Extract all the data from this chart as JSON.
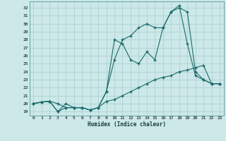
{
  "title": "",
  "xlabel": "Humidex (Indice chaleur)",
  "bg_color": "#cce8e8",
  "grid_color": "#aacccc",
  "line_color": "#1a6b6b",
  "xlim": [
    -0.5,
    23.5
  ],
  "ylim": [
    18.5,
    32.8
  ],
  "yticks": [
    19,
    20,
    21,
    22,
    23,
    24,
    25,
    26,
    27,
    28,
    29,
    30,
    31,
    32
  ],
  "xticks": [
    0,
    1,
    2,
    3,
    4,
    5,
    6,
    7,
    8,
    9,
    10,
    11,
    12,
    13,
    14,
    15,
    16,
    17,
    18,
    19,
    20,
    21,
    22,
    23
  ],
  "line1_y": [
    20.0,
    20.2,
    20.3,
    19.0,
    20.0,
    19.5,
    19.5,
    19.2,
    19.5,
    20.3,
    20.5,
    21.0,
    21.5,
    22.0,
    22.5,
    23.0,
    23.3,
    23.5,
    24.0,
    24.2,
    24.5,
    24.8,
    22.5,
    22.5
  ],
  "line2_y": [
    20.0,
    20.2,
    20.3,
    20.0,
    19.5,
    19.5,
    19.5,
    19.2,
    19.5,
    21.5,
    28.0,
    27.5,
    25.5,
    25.0,
    26.5,
    25.5,
    29.5,
    31.5,
    32.3,
    27.5,
    23.5,
    23.0,
    22.5,
    22.5
  ],
  "line3_y": [
    20.0,
    20.2,
    20.3,
    19.0,
    19.5,
    19.5,
    19.5,
    19.2,
    19.5,
    21.5,
    25.5,
    28.0,
    28.5,
    29.5,
    30.0,
    29.5,
    29.5,
    31.5,
    32.0,
    31.5,
    24.0,
    23.0,
    22.5,
    22.5
  ]
}
